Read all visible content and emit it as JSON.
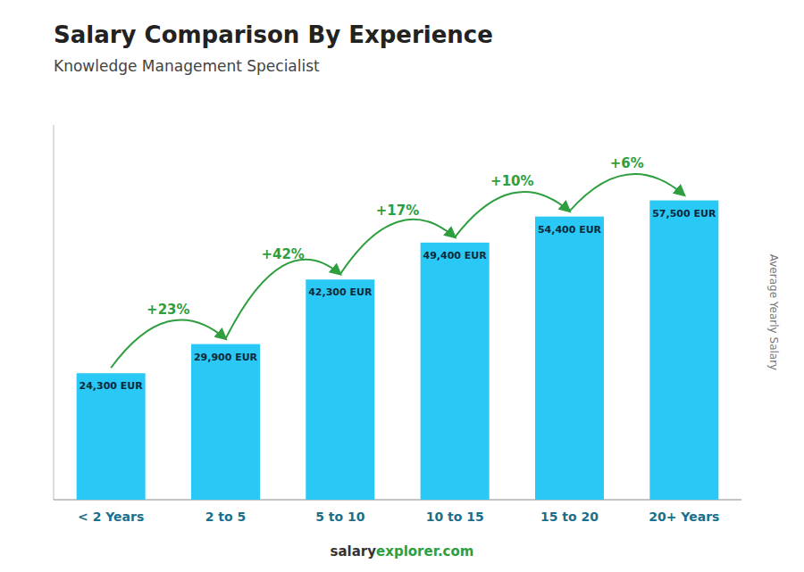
{
  "chart_data": {
    "type": "bar",
    "title": "Salary Comparison By Experience",
    "subtitle": "Knowledge Management Specialist",
    "ylabel": "Average Yearly Salary",
    "categories": [
      "< 2 Years",
      "2 to 5",
      "5 to 10",
      "10 to 15",
      "15 to 20",
      "20+ Years"
    ],
    "values": [
      24300,
      29900,
      42300,
      49400,
      54400,
      57500
    ],
    "value_labels": [
      "24,300 EUR",
      "29,900 EUR",
      "42,300 EUR",
      "49,400 EUR",
      "54,400 EUR",
      "57,500 EUR"
    ],
    "data_labels": true,
    "annotations": [
      "+23%",
      "+42%",
      "+17%",
      "+10%",
      "+6%"
    ],
    "footer": [
      "salary",
      "explorer.com"
    ],
    "color": "#29c8f5",
    "ylim": [
      0,
      72000
    ],
    "grid": false,
    "tick_labels": "x"
  }
}
